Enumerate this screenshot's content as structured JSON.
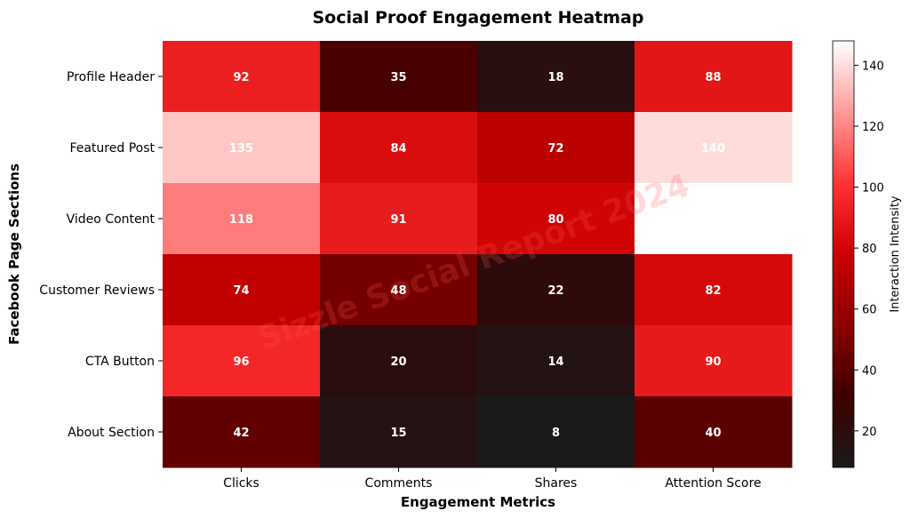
{
  "chart_data": {
    "type": "heatmap",
    "title": "Social Proof Engagement Heatmap",
    "xlabel": "Engagement Metrics",
    "ylabel": "Facebook Page Sections",
    "x_categories": [
      "Clicks",
      "Comments",
      "Shares",
      "Attention Score"
    ],
    "y_categories": [
      "Profile Header",
      "Featured Post",
      "Video Content",
      "Customer Reviews",
      "CTA Button",
      "About Section"
    ],
    "values": [
      [
        92,
        35,
        18,
        88
      ],
      [
        135,
        84,
        72,
        140
      ],
      [
        118,
        91,
        80,
        148
      ],
      [
        74,
        48,
        22,
        82
      ],
      [
        96,
        20,
        14,
        90
      ],
      [
        42,
        15,
        8,
        40
      ]
    ],
    "cell_labels": [
      [
        "92",
        "35",
        "18",
        "88"
      ],
      [
        "135",
        "84",
        "72",
        "140"
      ],
      [
        "118",
        "91",
        "80",
        ""
      ],
      [
        "74",
        "48",
        "22",
        "82"
      ],
      [
        "96",
        "20",
        "14",
        "90"
      ],
      [
        "42",
        "15",
        "8",
        "40"
      ]
    ],
    "colorbar": {
      "label": "Interaction Intensity",
      "range": [
        8,
        148
      ],
      "ticks": [
        20,
        40,
        60,
        80,
        100,
        120,
        140
      ]
    },
    "colormap": [
      "#1a1a1a",
      "#3d0000",
      "#8b0000",
      "#cc0000",
      "#ff3333",
      "#ff9999",
      "#ffffff"
    ],
    "watermark": "Sizzle Social Report 2024"
  }
}
